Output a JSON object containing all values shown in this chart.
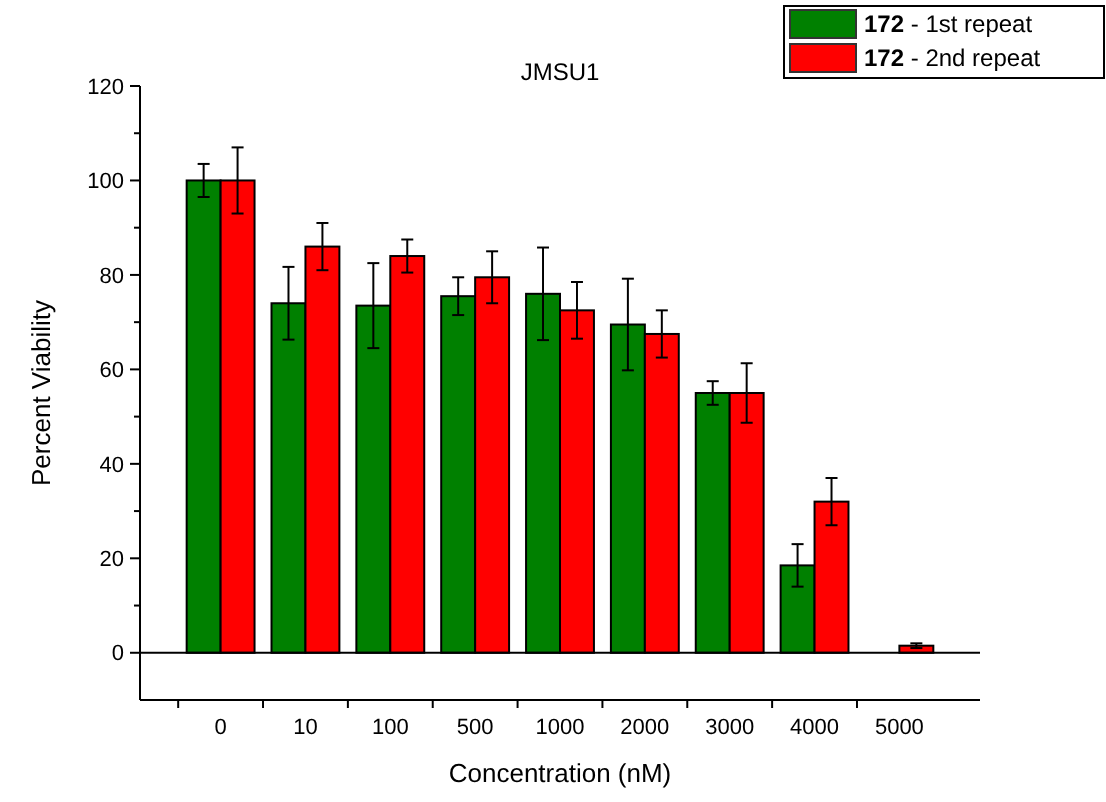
{
  "chart_data": {
    "type": "bar",
    "title": "JMSU1",
    "xlabel": "Concentration (nM)",
    "ylabel": "Percent Viability",
    "categories": [
      "0",
      "10",
      "100",
      "500",
      "1000",
      "2000",
      "3000",
      "4000",
      "5000"
    ],
    "series": [
      {
        "name": "172 - 1st repeat",
        "color": "#008000",
        "values": [
          100,
          74,
          73.5,
          75.5,
          76,
          69.5,
          55,
          18.5,
          null
        ],
        "errors": [
          3.5,
          7.7,
          9,
          4,
          9.8,
          9.7,
          2.5,
          4.5,
          null
        ]
      },
      {
        "name": "172 - 2nd repeat",
        "color": "#ff0000",
        "values": [
          100,
          86,
          84,
          79.5,
          72.5,
          67.5,
          55,
          32,
          1.5
        ],
        "errors": [
          7,
          5,
          3.5,
          5.5,
          6,
          5,
          6.3,
          5,
          0.5
        ]
      }
    ],
    "ylim": [
      -10,
      120
    ],
    "yticks": [
      0,
      20,
      40,
      60,
      80,
      100,
      120
    ],
    "ref_lines": [
      {
        "axis": "y",
        "value": 0
      }
    ],
    "legend": "top right",
    "grid": false
  }
}
